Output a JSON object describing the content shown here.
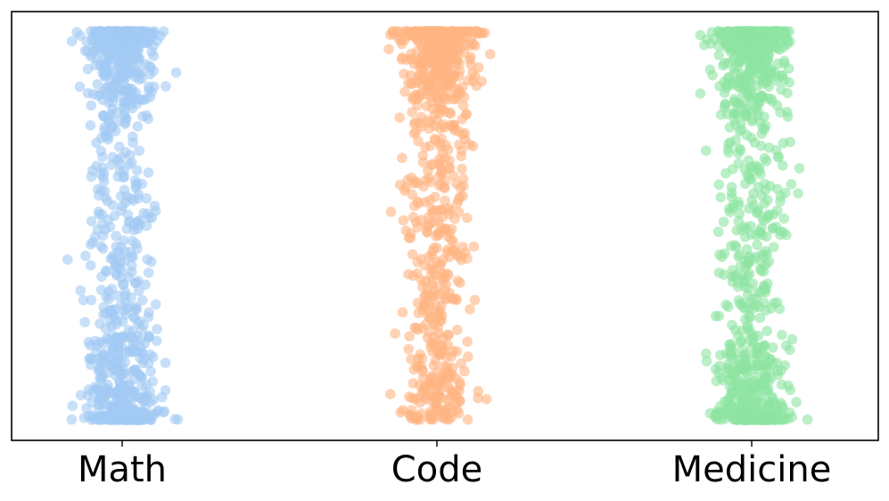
{
  "chart_data": {
    "type": "scatter",
    "title": "",
    "xlabel": "",
    "ylabel": "",
    "categories": [
      "Math",
      "Code",
      "Medicine"
    ],
    "ylim": [
      0,
      1
    ],
    "grid": false,
    "legend": "none",
    "yticks": "hidden",
    "series": [
      {
        "colour": "#a1c9f4",
        "x_jitter": 0.32,
        "n": 950,
        "distribution": "concentrated-at-extremes"
      },
      {
        "colour": "#ffb482",
        "x_jitter": 0.32,
        "n": 800,
        "distribution": "concentrated-at-top"
      },
      {
        "colour": "#8de5a1",
        "x_jitter": 0.32,
        "n": 950,
        "distribution": "concentrated-at-extremes"
      }
    ]
  }
}
